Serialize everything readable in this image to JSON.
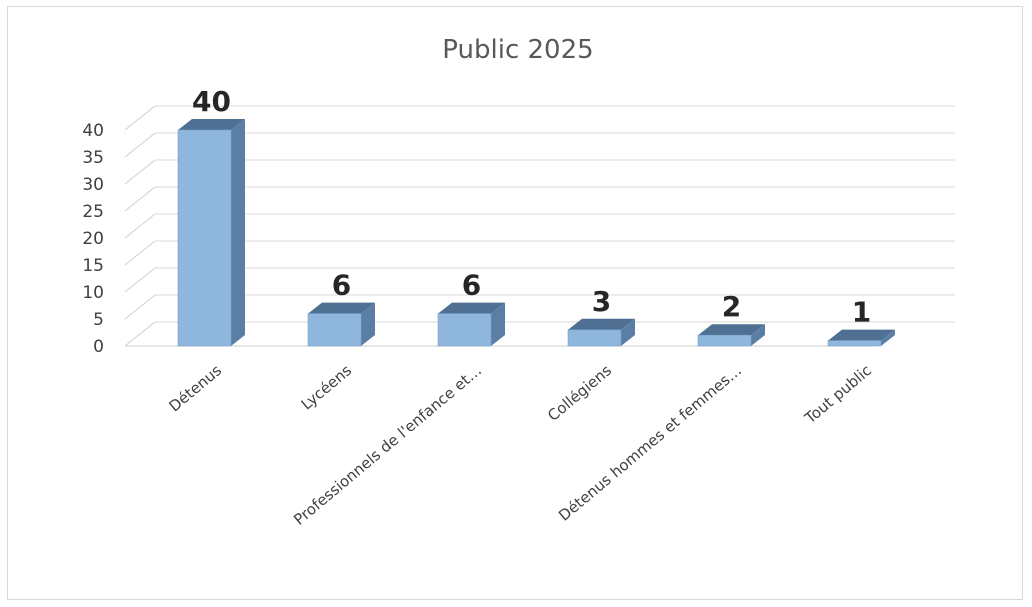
{
  "chart_data": {
    "type": "bar",
    "title": "Public 2025",
    "categories": [
      "Détenus",
      "Lycéens",
      "Professionnels de l'enfance et…",
      "Collégiens",
      "Détenus hommes et femmes…",
      "Tout public"
    ],
    "values": [
      40,
      6,
      6,
      3,
      2,
      1
    ],
    "xlabel": "",
    "ylabel": "",
    "ylim": [
      0,
      40
    ],
    "yticks": [
      0,
      5,
      10,
      15,
      20,
      25,
      30,
      35,
      40
    ],
    "grid": true,
    "legend": "none",
    "style": "3d-column",
    "colors": {
      "front": "#8fb6dc",
      "side": "#5b7ea5",
      "top": "#4f7092",
      "grid": "#d9d9d9",
      "wall": "#cfcfcf"
    }
  }
}
